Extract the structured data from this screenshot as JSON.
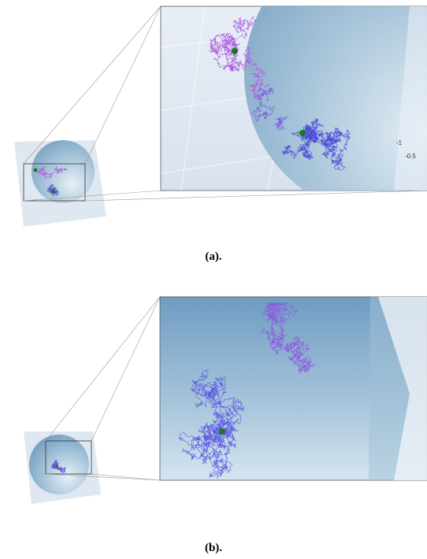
{
  "panel_a": {
    "caption": "(a).",
    "axis_labels": [
      "-1",
      "-0.5"
    ]
  },
  "panel_b": {
    "caption": "(b)."
  }
}
